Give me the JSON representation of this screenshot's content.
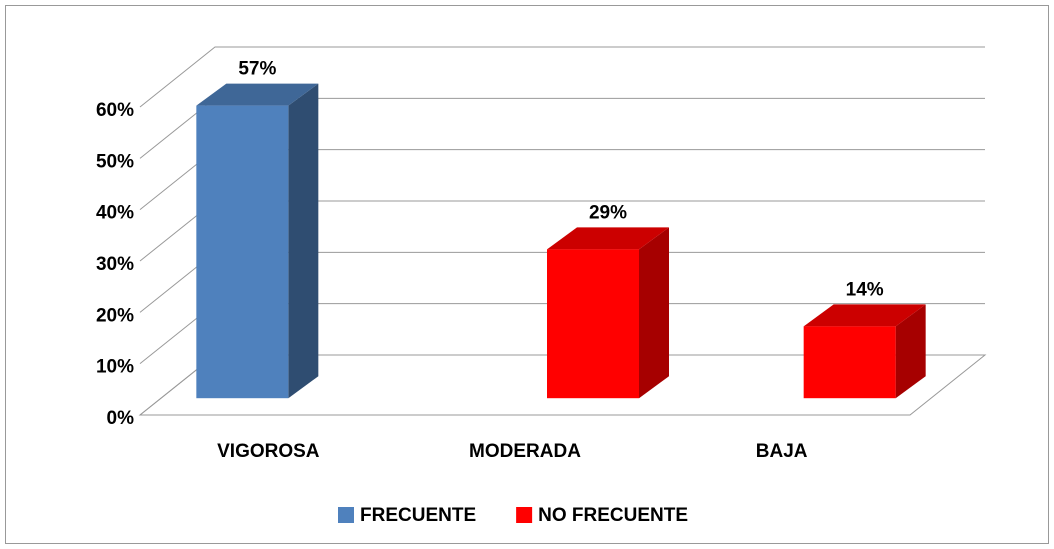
{
  "chart_data": {
    "type": "bar3d",
    "categories": [
      "VIGOROSA",
      "MODERADA",
      "BAJA"
    ],
    "series": [
      {
        "name": "FRECUENTE",
        "color": "#4f81bd",
        "values": [
          57,
          null,
          null
        ],
        "value_labels": [
          "57%",
          null,
          null
        ]
      },
      {
        "name": "NO FRECUENTE",
        "color": "#ff0000",
        "values": [
          null,
          29,
          14
        ],
        "value_labels": [
          null,
          "29%",
          "14%"
        ]
      }
    ],
    "ylim": [
      0,
      60
    ],
    "yticks": [
      {
        "value": 0,
        "label": "0%"
      },
      {
        "value": 10,
        "label": "10%"
      },
      {
        "value": 20,
        "label": "20%"
      },
      {
        "value": 30,
        "label": "30%"
      },
      {
        "value": 40,
        "label": "40%"
      },
      {
        "value": 50,
        "label": "50%"
      },
      {
        "value": 60,
        "label": "60%"
      }
    ],
    "grid": true,
    "legend": "bottom"
  }
}
